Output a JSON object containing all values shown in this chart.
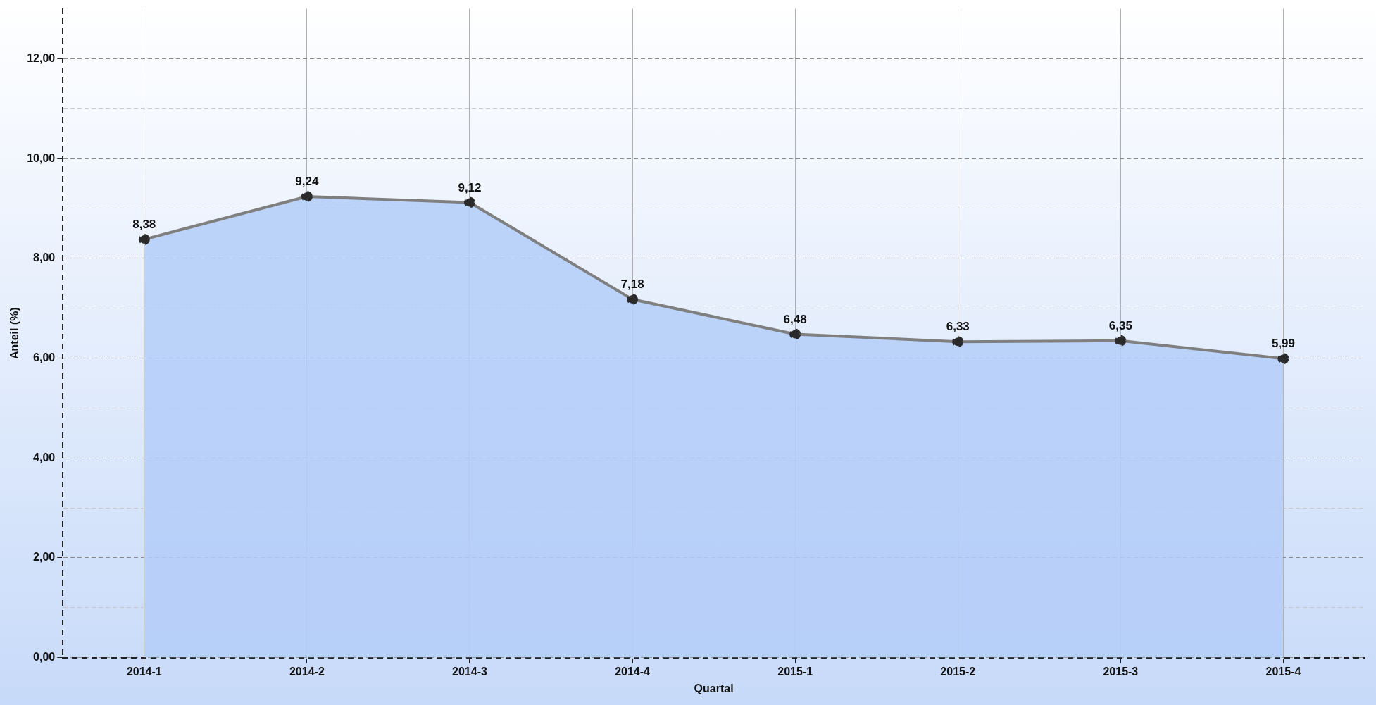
{
  "chart_data": {
    "type": "area",
    "xlabel": "Quartal",
    "ylabel": "Anteil (%)",
    "categories": [
      "2014-1",
      "2014-2",
      "2014-3",
      "2014-4",
      "2015-1",
      "2015-2",
      "2015-3",
      "2015-4"
    ],
    "series": [
      {
        "color": "#b4cdf8",
        "values": [
          8.38,
          9.24,
          9.12,
          7.18,
          6.48,
          6.33,
          6.35,
          5.99
        ],
        "value_labels": [
          "8,38",
          "9,24",
          "9,12",
          "7,18",
          "6,48",
          "6,33",
          "6,35",
          "5,99"
        ]
      }
    ],
    "ylim": [
      0,
      13
    ],
    "yticks": [
      {
        "value": 0,
        "label": "0,00"
      },
      {
        "value": 1,
        "label": null
      },
      {
        "value": 2,
        "label": "2,00"
      },
      {
        "value": 3,
        "label": null
      },
      {
        "value": 4,
        "label": "4,00"
      },
      {
        "value": 5,
        "label": null
      },
      {
        "value": 6,
        "label": "6,00"
      },
      {
        "value": 7,
        "label": null
      },
      {
        "value": 8,
        "label": "8,00"
      },
      {
        "value": 9,
        "label": null
      },
      {
        "value": 10,
        "label": "10,00"
      },
      {
        "value": 11,
        "label": null
      },
      {
        "value": 12,
        "label": "12,00"
      }
    ],
    "grid": true,
    "legend": false,
    "marker": "circle",
    "line_style": "solid"
  }
}
